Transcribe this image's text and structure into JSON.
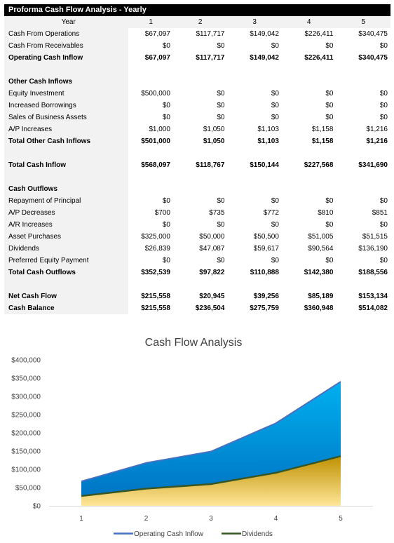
{
  "sheet_title": "Proforma Cash Flow Analysis - Yearly",
  "header": {
    "label": "Year",
    "years": [
      "1",
      "2",
      "3",
      "4",
      "5"
    ]
  },
  "rows": [
    {
      "label": "Cash From Operations",
      "values": [
        "$67,097",
        "$117,717",
        "$149,042",
        "$226,411",
        "$340,475"
      ],
      "bold": false
    },
    {
      "label": "Cash From Receivables",
      "values": [
        "$0",
        "$0",
        "$0",
        "$0",
        "$0"
      ],
      "bold": false
    },
    {
      "label": "Operating Cash Inflow",
      "values": [
        "$67,097",
        "$117,717",
        "$149,042",
        "$226,411",
        "$340,475"
      ],
      "bold": true
    },
    {
      "label": "",
      "values": [
        "",
        "",
        "",
        "",
        ""
      ],
      "bold": false
    },
    {
      "label": "Other Cash Inflows",
      "values": [
        "",
        "",
        "",
        "",
        ""
      ],
      "bold": true
    },
    {
      "label": "Equity Investment",
      "values": [
        "$500,000",
        "$0",
        "$0",
        "$0",
        "$0"
      ],
      "bold": false
    },
    {
      "label": "Increased Borrowings",
      "values": [
        "$0",
        "$0",
        "$0",
        "$0",
        "$0"
      ],
      "bold": false
    },
    {
      "label": "Sales of Business Assets",
      "values": [
        "$0",
        "$0",
        "$0",
        "$0",
        "$0"
      ],
      "bold": false
    },
    {
      "label": "A/P Increases",
      "values": [
        "$1,000",
        "$1,050",
        "$1,103",
        "$1,158",
        "$1,216"
      ],
      "bold": false
    },
    {
      "label": "Total Other Cash Inflows",
      "values": [
        "$501,000",
        "$1,050",
        "$1,103",
        "$1,158",
        "$1,216"
      ],
      "bold": true
    },
    {
      "label": "",
      "values": [
        "",
        "",
        "",
        "",
        ""
      ],
      "bold": false
    },
    {
      "label": "Total Cash Inflow",
      "values": [
        "$568,097",
        "$118,767",
        "$150,144",
        "$227,568",
        "$341,690"
      ],
      "bold": true
    },
    {
      "label": "",
      "values": [
        "",
        "",
        "",
        "",
        ""
      ],
      "bold": false
    },
    {
      "label": "Cash Outflows",
      "values": [
        "",
        "",
        "",
        "",
        ""
      ],
      "bold": true
    },
    {
      "label": "Repayment of Principal",
      "values": [
        "$0",
        "$0",
        "$0",
        "$0",
        "$0"
      ],
      "bold": false
    },
    {
      "label": "A/P Decreases",
      "values": [
        "$700",
        "$735",
        "$772",
        "$810",
        "$851"
      ],
      "bold": false
    },
    {
      "label": "A/R Increases",
      "values": [
        "$0",
        "$0",
        "$0",
        "$0",
        "$0"
      ],
      "bold": false
    },
    {
      "label": "Asset Purchases",
      "values": [
        "$325,000",
        "$50,000",
        "$50,500",
        "$51,005",
        "$51,515"
      ],
      "bold": false
    },
    {
      "label": "Dividends",
      "values": [
        "$26,839",
        "$47,087",
        "$59,617",
        "$90,564",
        "$136,190"
      ],
      "bold": false
    },
    {
      "label": "Preferred Equity Payment",
      "values": [
        "$0",
        "$0",
        "$0",
        "$0",
        "$0"
      ],
      "bold": false
    },
    {
      "label": "Total Cash Outflows",
      "values": [
        "$352,539",
        "$97,822",
        "$110,888",
        "$142,380",
        "$188,556"
      ],
      "bold": true
    },
    {
      "label": "",
      "values": [
        "",
        "",
        "",
        "",
        ""
      ],
      "bold": false
    },
    {
      "label": "Net Cash Flow",
      "values": [
        "$215,558",
        "$20,945",
        "$39,256",
        "$85,189",
        "$153,134"
      ],
      "bold": true
    },
    {
      "label": "Cash Balance",
      "values": [
        "$215,558",
        "$236,504",
        "$275,759",
        "$360,948",
        "$514,082"
      ],
      "bold": true
    }
  ],
  "chart_data": {
    "type": "area",
    "title": "Cash Flow Analysis",
    "x": [
      "1",
      "2",
      "3",
      "4",
      "5"
    ],
    "ylim": [
      0,
      400000
    ],
    "yticks": [
      0,
      50000,
      100000,
      150000,
      200000,
      250000,
      300000,
      350000,
      400000
    ],
    "ytick_labels": [
      "$0",
      "$50,000",
      "$100,000",
      "$150,000",
      "$200,000",
      "$250,000",
      "$300,000",
      "$350,000",
      "$400,000"
    ],
    "grid": false,
    "legend": "bottom",
    "series": [
      {
        "name": "Operating Cash Inflow",
        "values": [
          67097,
          117717,
          149042,
          226411,
          340475
        ],
        "line_color": "#4472c4",
        "fill_top": "#00b0f0",
        "fill_bottom": "#0070c0"
      },
      {
        "name": "Dividends",
        "values": [
          26839,
          47087,
          59617,
          90564,
          136190
        ],
        "line_color": "#375623",
        "fill_top": "#bf9000",
        "fill_bottom": "#ffe699"
      }
    ]
  }
}
